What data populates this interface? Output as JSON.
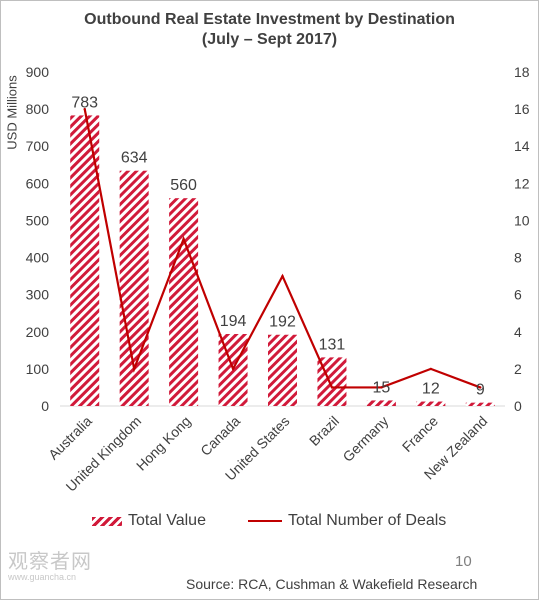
{
  "chart_data": {
    "type": "bar",
    "title": "Outbound Real Estate Investment by Destination",
    "subtitle": "(July – Sept 2017)",
    "ylabel": "USD Millions",
    "categories": [
      "Australia",
      "United Kingdom",
      "Hong Kong",
      "Canada",
      "United States",
      "Brazil",
      "Germany",
      "France",
      "New Zealand"
    ],
    "series": [
      {
        "name": "Total Value",
        "type": "bar",
        "axis": "left",
        "values": [
          783,
          634,
          560,
          194,
          192,
          131,
          15,
          12,
          9
        ],
        "data_labels": [
          "783",
          "634",
          "560",
          "194",
          "192",
          "131",
          "15",
          "12",
          "9"
        ]
      },
      {
        "name": "Total Number of Deals",
        "type": "line",
        "axis": "right",
        "values": [
          16,
          2,
          9,
          2,
          7,
          1,
          1,
          2,
          1
        ]
      }
    ],
    "ylim": [
      0,
      900
    ],
    "yticks": [
      "0",
      "100",
      "200",
      "300",
      "400",
      "500",
      "600",
      "700",
      "800",
      "900"
    ],
    "y2lim": [
      0,
      18
    ],
    "y2ticks": [
      "0",
      "2",
      "4",
      "6",
      "8",
      "10",
      "12",
      "14",
      "16",
      "18"
    ],
    "grid": false,
    "legend": "bottom",
    "colors": {
      "bar": "#d11a3a",
      "line": "#c00000",
      "axis": "#d9d9d9",
      "text": "#404040"
    }
  },
  "footer": {
    "page_number": "10",
    "source": "Source: RCA, Cushman & Wakefield Research",
    "watermark": "观察者网",
    "watermark_url": "www.guancha.cn"
  }
}
